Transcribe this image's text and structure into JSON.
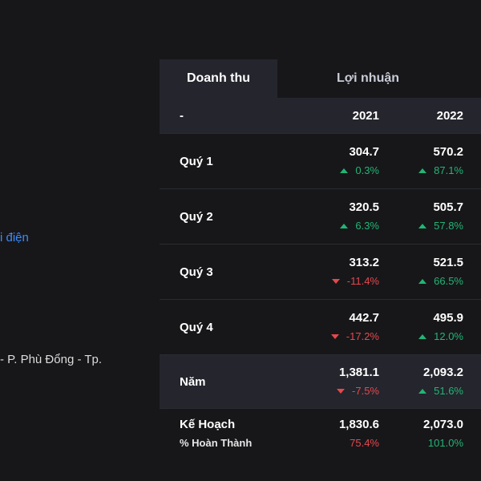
{
  "left": {
    "link_text": "i điện",
    "address_text": "- P. Phù Đổng - Tp."
  },
  "tabs": [
    {
      "label": "Doanh thu",
      "active": true
    },
    {
      "label": "Lợi nhuận",
      "active": false
    }
  ],
  "table": {
    "header": {
      "label": "-",
      "years": [
        "2021",
        "2022"
      ]
    },
    "quarters": [
      {
        "label": "Quý 1",
        "cells": [
          {
            "value": "304.7",
            "change": "0.3%",
            "dir": "up"
          },
          {
            "value": "570.2",
            "change": "87.1%",
            "dir": "up"
          }
        ]
      },
      {
        "label": "Quý 2",
        "cells": [
          {
            "value": "320.5",
            "change": "6.3%",
            "dir": "up"
          },
          {
            "value": "505.7",
            "change": "57.8%",
            "dir": "up"
          }
        ]
      },
      {
        "label": "Quý 3",
        "cells": [
          {
            "value": "313.2",
            "change": "-11.4%",
            "dir": "down"
          },
          {
            "value": "521.5",
            "change": "66.5%",
            "dir": "up"
          }
        ]
      },
      {
        "label": "Quý 4",
        "cells": [
          {
            "value": "442.7",
            "change": "-17.2%",
            "dir": "down"
          },
          {
            "value": "495.9",
            "change": "12.0%",
            "dir": "up"
          }
        ]
      }
    ],
    "year": {
      "label": "Năm",
      "cells": [
        {
          "value": "1,381.1",
          "change": "-7.5%",
          "dir": "down"
        },
        {
          "value": "2,093.2",
          "change": "51.6%",
          "dir": "up"
        }
      ]
    },
    "plan": {
      "label": "Kế Hoạch",
      "sublabel": "% Hoàn Thành",
      "cells": [
        {
          "value": "1,830.6",
          "pct": "75.4%",
          "status": "below"
        },
        {
          "value": "2,073.0",
          "pct": "101.0%",
          "status": "above"
        }
      ]
    }
  },
  "colors": {
    "up": "#22b573",
    "down": "#e5484d",
    "link": "#3d8bfd",
    "panel": "#24252d",
    "background": "#17171a"
  }
}
